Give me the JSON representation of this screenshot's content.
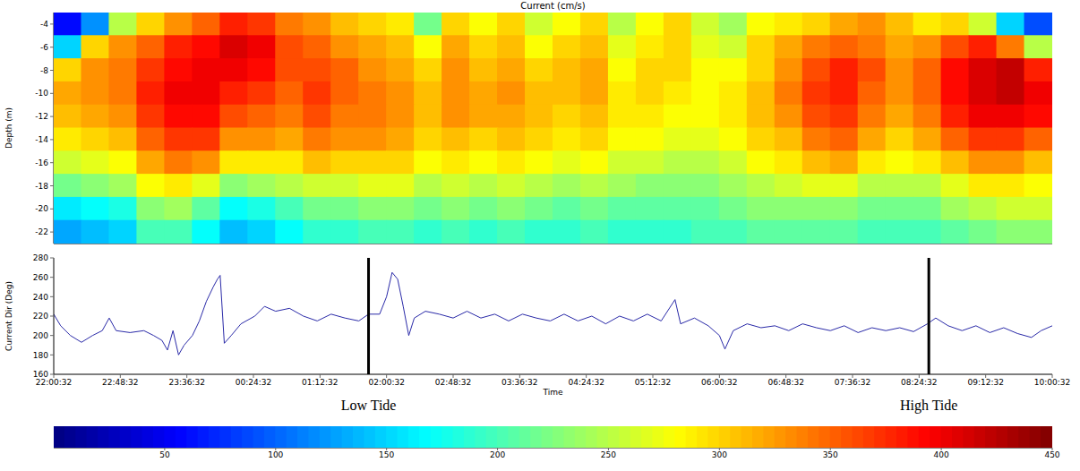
{
  "chart_data": [
    {
      "type": "heatmap",
      "title": "Current (cm/s)",
      "y_label": "Depth (m)",
      "x": [
        10,
        30,
        50,
        70,
        90,
        110,
        130,
        150,
        170,
        190,
        210,
        230,
        250,
        270,
        290,
        310,
        330,
        350,
        370,
        390,
        410,
        430,
        450,
        470,
        490,
        510,
        530,
        550,
        570,
        590,
        610,
        630,
        650,
        670,
        690,
        710
      ],
      "y": [
        -4,
        -6,
        -8,
        -10,
        -12,
        -14,
        -16,
        -18,
        -20,
        -22
      ],
      "cells": [
        [
          60,
          120,
          250,
          300,
          330,
          350,
          380,
          370,
          340,
          330,
          310,
          300,
          290,
          220,
          300,
          280,
          300,
          260,
          280,
          300,
          250,
          280,
          300,
          260,
          240,
          280,
          290,
          300,
          320,
          330,
          310,
          290,
          300,
          260,
          150,
          90
        ],
        [
          150,
          300,
          330,
          350,
          380,
          390,
          410,
          400,
          360,
          350,
          330,
          320,
          310,
          280,
          320,
          300,
          310,
          280,
          300,
          310,
          270,
          290,
          300,
          270,
          260,
          300,
          320,
          340,
          350,
          340,
          320,
          330,
          360,
          380,
          340,
          250
        ],
        [
          300,
          330,
          340,
          370,
          390,
          400,
          400,
          390,
          360,
          360,
          350,
          330,
          320,
          300,
          330,
          310,
          320,
          300,
          310,
          320,
          280,
          300,
          300,
          280,
          280,
          300,
          330,
          360,
          380,
          360,
          330,
          350,
          390,
          410,
          420,
          380
        ],
        [
          320,
          330,
          340,
          380,
          400,
          400,
          380,
          370,
          350,
          370,
          350,
          340,
          330,
          310,
          330,
          320,
          330,
          310,
          310,
          320,
          290,
          300,
          290,
          280,
          290,
          310,
          340,
          370,
          380,
          350,
          330,
          350,
          390,
          410,
          420,
          400
        ],
        [
          310,
          320,
          330,
          370,
          390,
          390,
          360,
          350,
          340,
          360,
          340,
          340,
          330,
          310,
          330,
          320,
          320,
          310,
          300,
          310,
          290,
          290,
          280,
          280,
          290,
          310,
          330,
          360,
          370,
          340,
          320,
          340,
          380,
          400,
          400,
          390
        ],
        [
          290,
          300,
          310,
          350,
          370,
          370,
          330,
          330,
          320,
          340,
          330,
          330,
          320,
          300,
          310,
          300,
          310,
          300,
          290,
          300,
          280,
          280,
          270,
          270,
          280,
          300,
          310,
          340,
          350,
          320,
          300,
          320,
          350,
          370,
          370,
          350
        ],
        [
          260,
          270,
          280,
          320,
          340,
          330,
          290,
          290,
          290,
          310,
          300,
          300,
          300,
          280,
          290,
          280,
          290,
          280,
          270,
          280,
          260,
          260,
          250,
          250,
          260,
          280,
          290,
          310,
          320,
          290,
          280,
          290,
          310,
          330,
          330,
          310
        ],
        [
          220,
          230,
          240,
          280,
          290,
          270,
          230,
          240,
          250,
          260,
          260,
          270,
          270,
          250,
          260,
          250,
          260,
          250,
          240,
          250,
          240,
          230,
          230,
          230,
          240,
          250,
          260,
          270,
          270,
          250,
          250,
          250,
          270,
          290,
          290,
          280
        ],
        [
          160,
          170,
          180,
          230,
          240,
          210,
          170,
          180,
          200,
          220,
          220,
          230,
          230,
          220,
          230,
          220,
          230,
          220,
          210,
          220,
          210,
          210,
          210,
          210,
          220,
          230,
          230,
          230,
          230,
          220,
          220,
          220,
          240,
          250,
          260,
          260
        ],
        [
          130,
          140,
          150,
          200,
          200,
          170,
          140,
          150,
          170,
          190,
          190,
          200,
          200,
          190,
          200,
          190,
          200,
          190,
          190,
          200,
          190,
          190,
          190,
          200,
          200,
          210,
          210,
          210,
          210,
          200,
          200,
          200,
          210,
          220,
          230,
          230
        ]
      ],
      "xlim": [
        0,
        720
      ],
      "ylim": [
        -23,
        -3
      ],
      "yticks": [
        -4,
        -6,
        -8,
        -10,
        -12,
        -14,
        -16,
        -18,
        -20,
        -22
      ],
      "tick_labels": "y",
      "colorbar": {
        "range": [
          0,
          450
        ],
        "ticks": [
          50,
          100,
          150,
          200,
          250,
          300,
          350,
          400,
          450
        ]
      }
    },
    {
      "type": "line",
      "x_label": "Time",
      "y_label": "Current Dir (Deg)",
      "color": "#2a2aa8",
      "x": [
        0,
        5,
        12,
        20,
        28,
        35,
        40,
        45,
        55,
        65,
        72,
        78,
        82,
        86,
        90,
        94,
        100,
        105,
        110,
        115,
        118,
        120,
        123,
        128,
        135,
        145,
        152,
        160,
        170,
        180,
        190,
        200,
        210,
        220,
        227,
        235,
        240,
        244,
        248,
        252,
        256,
        260,
        268,
        278,
        288,
        298,
        308,
        318,
        328,
        338,
        348,
        358,
        368,
        378,
        388,
        398,
        408,
        418,
        428,
        438,
        448,
        452,
        462,
        472,
        480,
        484,
        490,
        500,
        510,
        520,
        530,
        540,
        550,
        560,
        570,
        580,
        590,
        600,
        610,
        620,
        630,
        636,
        645,
        655,
        665,
        675,
        685,
        695,
        705,
        712,
        720
      ],
      "values": [
        222,
        210,
        200,
        193,
        200,
        205,
        218,
        205,
        203,
        205,
        200,
        195,
        185,
        205,
        180,
        190,
        200,
        215,
        235,
        250,
        258,
        262,
        192,
        200,
        212,
        220,
        230,
        225,
        228,
        220,
        215,
        222,
        218,
        215,
        222,
        222,
        240,
        265,
        258,
        230,
        200,
        218,
        225,
        222,
        218,
        225,
        218,
        222,
        215,
        222,
        218,
        215,
        222,
        215,
        220,
        212,
        220,
        215,
        222,
        215,
        237,
        212,
        218,
        210,
        200,
        186,
        205,
        212,
        208,
        210,
        205,
        212,
        208,
        205,
        210,
        203,
        208,
        205,
        208,
        204,
        212,
        218,
        210,
        205,
        210,
        203,
        208,
        202,
        198,
        205,
        210
      ],
      "xlim": [
        0,
        720
      ],
      "xticks": [
        {
          "value": 0,
          "label": "22:00:32"
        },
        {
          "value": 48,
          "label": "22:48:32"
        },
        {
          "value": 96,
          "label": "23:36:32"
        },
        {
          "value": 144,
          "label": "00:24:32"
        },
        {
          "value": 192,
          "label": "01:12:32"
        },
        {
          "value": 240,
          "label": "02:00:32"
        },
        {
          "value": 288,
          "label": "02:48:32"
        },
        {
          "value": 336,
          "label": "03:36:32"
        },
        {
          "value": 384,
          "label": "04:24:32"
        },
        {
          "value": 432,
          "label": "05:12:32"
        },
        {
          "value": 480,
          "label": "06:00:32"
        },
        {
          "value": 528,
          "label": "06:48:32"
        },
        {
          "value": 576,
          "label": "07:36:32"
        },
        {
          "value": 624,
          "label": "08:24:32"
        },
        {
          "value": 672,
          "label": "09:12:32"
        },
        {
          "value": 720,
          "label": "10:00:32"
        }
      ],
      "ylim": [
        160,
        280
      ],
      "yticks": [
        160,
        180,
        200,
        220,
        240,
        260,
        280
      ],
      "annotations": [
        {
          "x": 227,
          "text": "Low Tide"
        },
        {
          "x": 631,
          "text": "High Tide"
        }
      ]
    }
  ]
}
